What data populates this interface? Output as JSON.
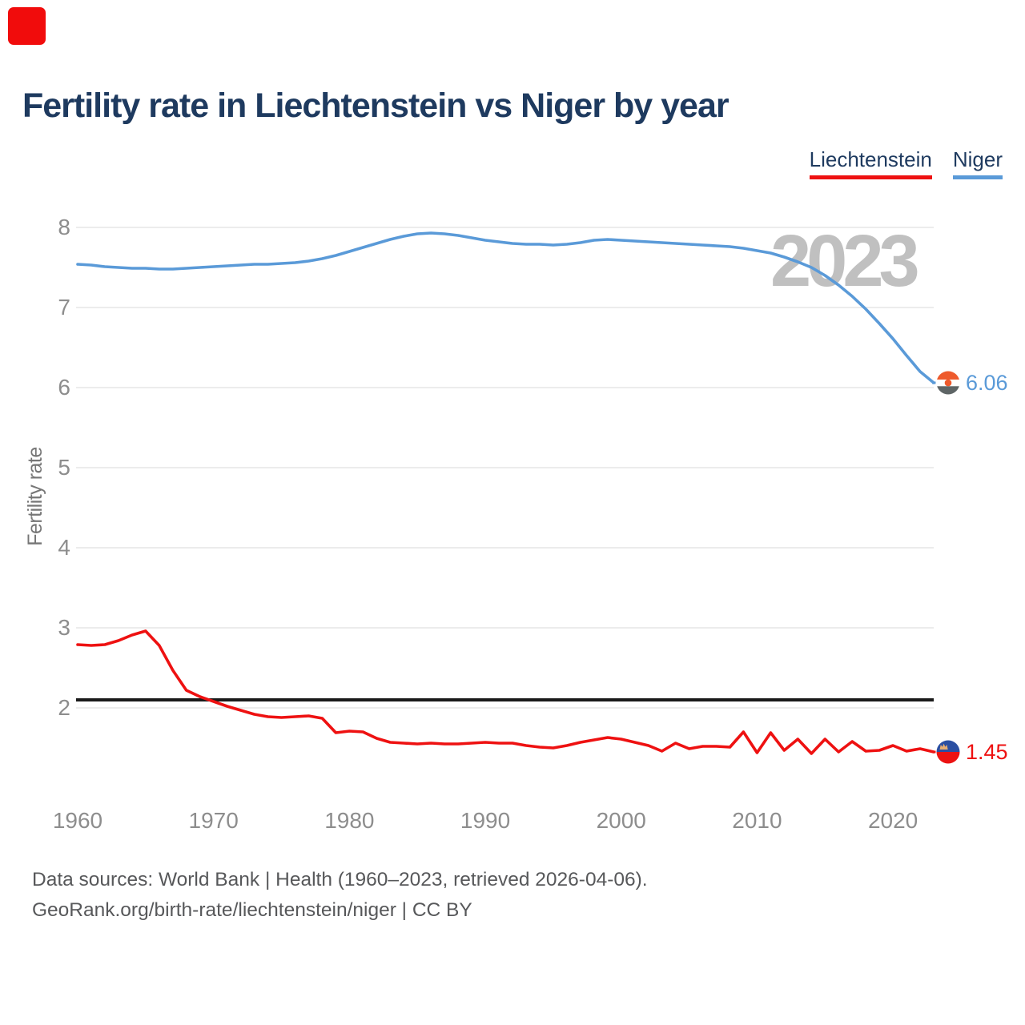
{
  "logo": {
    "color": "#f10c0c"
  },
  "title": "Fertility rate in Liechtenstein vs Niger by year",
  "legend": [
    {
      "label": "Liechtenstein",
      "color": "#ee1111"
    },
    {
      "label": "Niger",
      "color": "#5a9ad8"
    }
  ],
  "watermark": "2023",
  "chart_data": {
    "type": "line",
    "title": "Fertility rate in Liechtenstein vs Niger by year",
    "ylabel": "Fertility rate",
    "yticks": [
      2,
      3,
      4,
      5,
      6,
      7,
      8
    ],
    "ylim": [
      1.3,
      8.3
    ],
    "xticks": [
      1960,
      1970,
      1980,
      1990,
      2000,
      2010,
      2020
    ],
    "grid": true,
    "legend_position": "top-right",
    "reference_line": {
      "value": 2.1,
      "color": "#1a1a1a"
    },
    "x": [
      1960,
      1961,
      1962,
      1963,
      1964,
      1965,
      1966,
      1967,
      1968,
      1969,
      1970,
      1971,
      1972,
      1973,
      1974,
      1975,
      1976,
      1977,
      1978,
      1979,
      1980,
      1981,
      1982,
      1983,
      1984,
      1985,
      1986,
      1987,
      1988,
      1989,
      1990,
      1991,
      1992,
      1993,
      1994,
      1995,
      1996,
      1997,
      1998,
      1999,
      2000,
      2001,
      2002,
      2003,
      2004,
      2005,
      2006,
      2007,
      2008,
      2009,
      2010,
      2011,
      2012,
      2013,
      2014,
      2015,
      2016,
      2017,
      2018,
      2019,
      2020,
      2021,
      2022,
      2023
    ],
    "series": [
      {
        "name": "Liechtenstein",
        "color": "#ee1111",
        "values": [
          2.79,
          2.78,
          2.79,
          2.84,
          2.91,
          2.96,
          2.78,
          2.47,
          2.22,
          2.14,
          2.08,
          2.02,
          1.97,
          1.92,
          1.89,
          1.88,
          1.89,
          1.9,
          1.87,
          1.69,
          1.71,
          1.7,
          1.62,
          1.57,
          1.56,
          1.55,
          1.56,
          1.55,
          1.55,
          1.56,
          1.57,
          1.56,
          1.56,
          1.53,
          1.51,
          1.5,
          1.53,
          1.57,
          1.6,
          1.63,
          1.61,
          1.57,
          1.53,
          1.46,
          1.56,
          1.49,
          1.52,
          1.52,
          1.51,
          1.7,
          1.44,
          1.69,
          1.47,
          1.61,
          1.43,
          1.61,
          1.45,
          1.58,
          1.46,
          1.47,
          1.53,
          1.46,
          1.49,
          1.45
        ]
      },
      {
        "name": "Niger",
        "color": "#5a9ad8",
        "values": [
          7.54,
          7.53,
          7.51,
          7.5,
          7.49,
          7.49,
          7.48,
          7.48,
          7.49,
          7.5,
          7.51,
          7.52,
          7.53,
          7.54,
          7.54,
          7.55,
          7.56,
          7.58,
          7.61,
          7.65,
          7.7,
          7.75,
          7.8,
          7.85,
          7.89,
          7.92,
          7.93,
          7.92,
          7.9,
          7.87,
          7.84,
          7.82,
          7.8,
          7.79,
          7.79,
          7.78,
          7.79,
          7.81,
          7.84,
          7.85,
          7.84,
          7.83,
          7.82,
          7.81,
          7.8,
          7.79,
          7.78,
          7.77,
          7.76,
          7.74,
          7.71,
          7.68,
          7.63,
          7.57,
          7.5,
          7.4,
          7.28,
          7.14,
          6.98,
          6.8,
          6.61,
          6.4,
          6.2,
          6.06
        ]
      }
    ],
    "end_markers": [
      {
        "series": "Niger",
        "value_label": "6.06",
        "label_color": "#5a9ad8",
        "flag": "niger-flag-icon",
        "flag_colors": {
          "top_band": "#ee5a2c",
          "middle_band": "#ffffff",
          "bottom_band": "#5e6566",
          "center_dot": "#ee5a2c"
        }
      },
      {
        "series": "Liechtenstein",
        "value_label": "1.45",
        "label_color": "#ee1111",
        "flag": "liechtenstein-flag-icon",
        "flag_colors": {
          "top_half": "#2b4fa2",
          "bottom_half": "#ec1212",
          "crown": "#e6ad72"
        }
      }
    ]
  },
  "footer": {
    "line1": "Data sources: World Bank | Health (1960–2023, retrieved 2026-04-06).",
    "line2": "GeoRank.org/birth-rate/liechtenstein/niger | CC BY"
  }
}
